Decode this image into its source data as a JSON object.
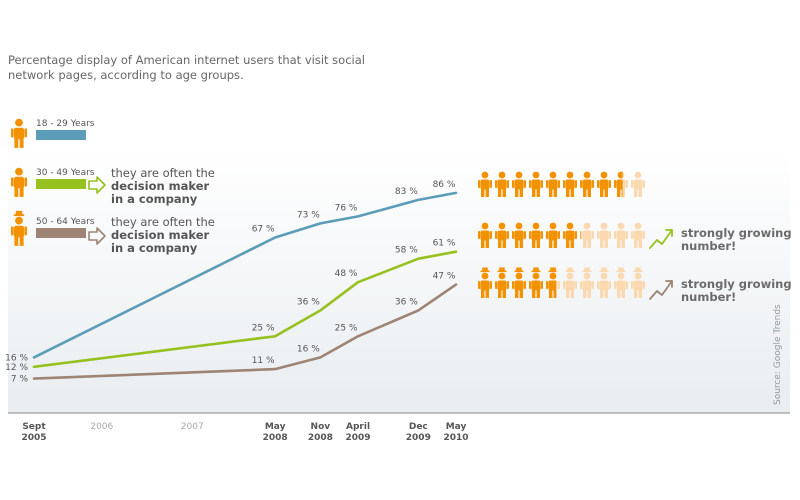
{
  "title": "Percentage display of American internet users that visit social network pages, according to age groups.",
  "source": "Source: Google Trends",
  "annotations": {
    "decision_line1": "they are often the",
    "decision_line2": "decision maker",
    "decision_line3": "in a company",
    "growing_line1": "strongly growing",
    "growing_line2": "number!"
  },
  "colors": {
    "series_18_29": "#5b9cb8",
    "series_30_49": "#97c11f",
    "series_50_64": "#9e8474",
    "person": "#f39200",
    "person_faded": "#fbd9b0",
    "axis": "#888888",
    "text": "#555555"
  },
  "icons": [
    "person-icon",
    "arrow-right-icon",
    "trend-up-icon"
  ],
  "pictograms": [
    {
      "series": "18 - 29 Years",
      "value": 86
    },
    {
      "series": "30 - 49 Years",
      "value": 61
    },
    {
      "series": "50 - 64 Years",
      "value": 47
    }
  ],
  "chart_data": {
    "type": "line",
    "x_ticks": [
      {
        "date": "2005-09",
        "label": [
          "Sept",
          "2005"
        ],
        "strong": true
      },
      {
        "date": "2006-06",
        "label": [
          "2006"
        ],
        "strong": false
      },
      {
        "date": "2007-06",
        "label": [
          "2007"
        ],
        "strong": false
      },
      {
        "date": "2008-05",
        "label": [
          "May",
          "2008"
        ],
        "strong": true
      },
      {
        "date": "2008-11",
        "label": [
          "Nov",
          "2008"
        ],
        "strong": true
      },
      {
        "date": "2009-04",
        "label": [
          "April",
          "2009"
        ],
        "strong": true
      },
      {
        "date": "2009-12",
        "label": [
          "Dec",
          "2009"
        ],
        "strong": true
      },
      {
        "date": "2010-05",
        "label": [
          "May",
          "2010"
        ],
        "strong": true
      }
    ],
    "series": [
      {
        "name": "18 - 29 Years",
        "color": "#5b9cb8",
        "points": [
          {
            "x": "2005-09",
            "y": 16,
            "label": "16 %"
          },
          {
            "x": "2008-05",
            "y": 67,
            "label": "67 %"
          },
          {
            "x": "2008-11",
            "y": 73,
            "label": "73 %"
          },
          {
            "x": "2009-04",
            "y": 76,
            "label": "76 %"
          },
          {
            "x": "2009-12",
            "y": 83,
            "label": "83 %"
          },
          {
            "x": "2010-05",
            "y": 86,
            "label": "86 %"
          }
        ]
      },
      {
        "name": "30 - 49 Years",
        "color": "#97c11f",
        "points": [
          {
            "x": "2005-09",
            "y": 12,
            "label": "12 %"
          },
          {
            "x": "2008-05",
            "y": 25,
            "label": "25 %"
          },
          {
            "x": "2008-11",
            "y": 36,
            "label": "36 %"
          },
          {
            "x": "2009-04",
            "y": 48,
            "label": "48 %"
          },
          {
            "x": "2009-12",
            "y": 58,
            "label": "58 %"
          },
          {
            "x": "2010-05",
            "y": 61,
            "label": "61 %"
          }
        ]
      },
      {
        "name": "50 - 64 Years",
        "color": "#9e8474",
        "points": [
          {
            "x": "2005-09",
            "y": 7,
            "label": "7 %"
          },
          {
            "x": "2008-05",
            "y": 11,
            "label": "11 %"
          },
          {
            "x": "2008-11",
            "y": 16,
            "label": "16 %"
          },
          {
            "x": "2009-04",
            "y": 25,
            "label": "25 %"
          },
          {
            "x": "2009-12",
            "y": 36,
            "label": "36 %"
          },
          {
            "x": "2010-05",
            "y": 47,
            "label": "47 %"
          }
        ]
      }
    ],
    "ylim": [
      0,
      100
    ],
    "grid": false,
    "legend": "left"
  }
}
